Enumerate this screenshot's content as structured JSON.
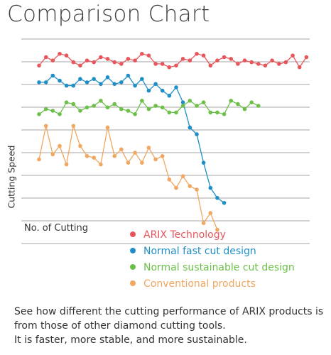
{
  "title": "Comparison Chart",
  "caption": [
    "See how different the cutting performance of ARIX products is",
    "from those of other diamond cutting tools.",
    "It is faster, more stable, and more sustainable."
  ],
  "chart_data": {
    "type": "line",
    "xlabel": "No. of Cutting",
    "ylabel": "Cutting Speed",
    "grid": true,
    "legend_position": "bottom-right",
    "num_gridlines": 10,
    "series": [
      {
        "name": "ARIX Technology",
        "color": "#e8565c",
        "x": [
          1,
          2,
          3,
          4,
          5,
          6,
          7,
          8,
          9,
          10,
          11,
          12,
          13,
          14,
          15,
          16,
          17,
          18,
          19,
          20,
          21,
          22,
          23,
          24,
          25,
          26,
          27,
          28,
          29,
          30,
          31,
          32,
          33,
          34,
          35,
          36,
          37,
          38,
          39,
          40
        ],
        "y": [
          8.8,
          9.3,
          9.1,
          9.5,
          9.4,
          9.0,
          8.8,
          9.1,
          9.0,
          9.3,
          9.2,
          9.0,
          8.9,
          9.2,
          9.1,
          9.5,
          9.4,
          8.9,
          8.9,
          8.7,
          8.8,
          9.2,
          9.1,
          9.5,
          9.4,
          8.8,
          9.1,
          9.3,
          9.2,
          8.9,
          9.1,
          9.0,
          8.9,
          8.8,
          9.1,
          8.9,
          9.0,
          9.4,
          8.7,
          9.3
        ]
      },
      {
        "name": "Normal fast cut design",
        "color": "#1f8fc8",
        "x": [
          1,
          2,
          3,
          4,
          5,
          6,
          7,
          8,
          9,
          10,
          11,
          12,
          13,
          14,
          15,
          16,
          17,
          18,
          19,
          20,
          21,
          22,
          23,
          24,
          25,
          26,
          27,
          28
        ],
        "y": [
          7.8,
          7.8,
          8.2,
          7.9,
          7.6,
          7.6,
          8.0,
          7.8,
          8.0,
          7.7,
          8.1,
          7.7,
          7.8,
          8.2,
          7.6,
          8.0,
          7.3,
          7.7,
          7.3,
          7.0,
          7.5,
          6.6,
          5.1,
          4.7,
          3.0,
          1.5,
          0.9,
          0.6
        ]
      },
      {
        "name": "Normal sustainable cut design",
        "color": "#6cc04a",
        "x": [
          1,
          2,
          3,
          4,
          5,
          6,
          7,
          8,
          9,
          10,
          11,
          12,
          13,
          14,
          15,
          16,
          17,
          18,
          19,
          20,
          21,
          22,
          23,
          24,
          25,
          26,
          27,
          28,
          29,
          30,
          31,
          32,
          33
        ],
        "y": [
          5.9,
          6.2,
          6.1,
          5.9,
          6.6,
          6.5,
          6.1,
          6.3,
          6.4,
          6.7,
          6.3,
          6.5,
          6.2,
          6.1,
          5.9,
          6.7,
          6.2,
          6.4,
          6.3,
          6.0,
          6.0,
          6.4,
          6.7,
          6.4,
          6.6,
          6.0,
          6.0,
          5.9,
          6.7,
          6.5,
          6.2,
          6.6,
          6.4
        ]
      },
      {
        "name": "Conventional products",
        "color": "#f0a760",
        "x": [
          1,
          2,
          3,
          4,
          5,
          6,
          7,
          8,
          9,
          10,
          11,
          12,
          13,
          14,
          15,
          16,
          17,
          18,
          19,
          20,
          21,
          22,
          23,
          24,
          25,
          26,
          27
        ],
        "y": [
          3.2,
          5.2,
          3.5,
          4.0,
          2.9,
          5.2,
          4.0,
          3.4,
          3.3,
          2.9,
          5.1,
          3.4,
          3.8,
          3.0,
          3.6,
          3.0,
          3.9,
          3.2,
          3.4,
          2.0,
          1.5,
          2.2,
          1.6,
          1.4,
          -0.6,
          0.0,
          -1.0
        ]
      }
    ]
  }
}
